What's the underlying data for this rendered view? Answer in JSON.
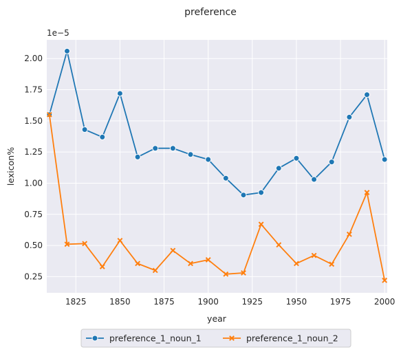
{
  "chart_data": {
    "type": "line",
    "title": "preference",
    "xlabel": "year",
    "ylabel": "lexicon%",
    "y_offset_label": "1e−5",
    "x": [
      1810,
      1820,
      1830,
      1840,
      1850,
      1860,
      1870,
      1880,
      1890,
      1900,
      1910,
      1920,
      1930,
      1940,
      1950,
      1960,
      1970,
      1980,
      1990,
      2000
    ],
    "xlim": [
      1808.5,
      2001.5
    ],
    "ylim": [
      0.12,
      2.15
    ],
    "xticks": [
      1825,
      1850,
      1875,
      1900,
      1925,
      1950,
      1975,
      2000
    ],
    "xtick_labels": [
      "1825",
      "1850",
      "1875",
      "1900",
      "1925",
      "1950",
      "1975",
      "2000"
    ],
    "yticks": [
      0.25,
      0.5,
      0.75,
      1.0,
      1.25,
      1.5,
      1.75,
      2.0
    ],
    "ytick_labels": [
      "0.25",
      "0.50",
      "0.75",
      "1.00",
      "1.25",
      "1.50",
      "1.75",
      "2.00"
    ],
    "grid": true,
    "legend_position": "bottom-center",
    "series": [
      {
        "name": "preference_1_noun_1",
        "color": "#1f77b4",
        "marker": "circle",
        "values": [
          1.55,
          2.06,
          1.43,
          1.37,
          1.72,
          1.21,
          1.28,
          1.28,
          1.23,
          1.19,
          1.04,
          0.905,
          0.925,
          1.12,
          1.2,
          1.03,
          1.17,
          1.53,
          1.71,
          1.19
        ]
      },
      {
        "name": "preference_1_noun_2",
        "color": "#ff7f0e",
        "marker": "x",
        "values": [
          1.55,
          0.51,
          0.515,
          0.33,
          0.54,
          0.355,
          0.3,
          0.46,
          0.355,
          0.385,
          0.27,
          0.28,
          0.67,
          0.505,
          0.355,
          0.42,
          0.35,
          0.59,
          0.925,
          0.22
        ]
      }
    ]
  }
}
